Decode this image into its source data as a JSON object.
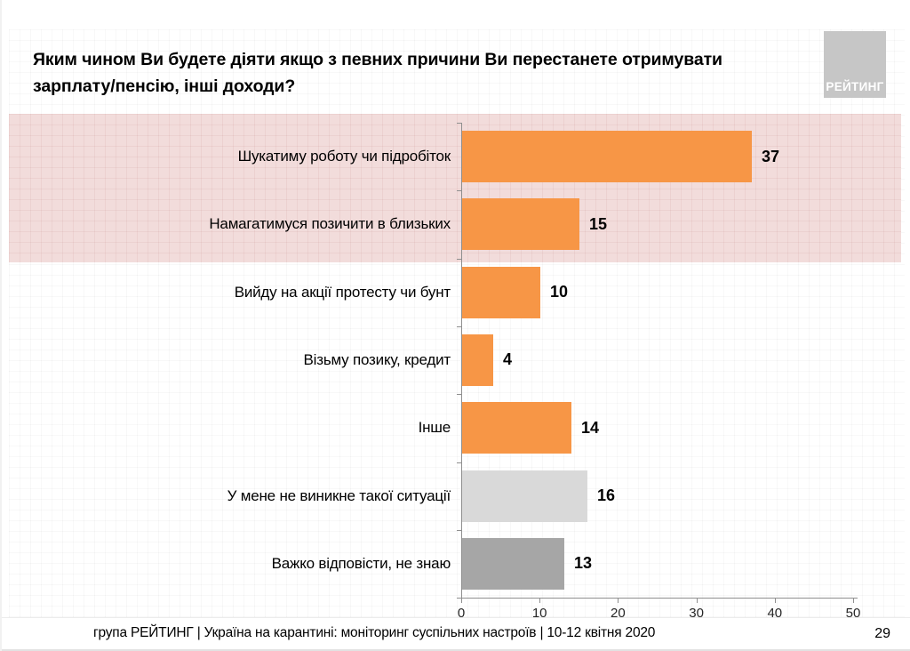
{
  "header": {
    "title": "Яким чином Ви будете діяти якщо з певних причини Ви перестанете отримувати\nзарплату/пенсію, інші доходи?",
    "logo_text": "РЕЙТИНГ"
  },
  "chart_data": {
    "type": "bar",
    "orientation": "horizontal",
    "title": "Яким чином Ви будете діяти якщо з певних причини Ви перестанете отримувати зарплату/пенсію, інші доходи?",
    "categories": [
      "Шукатиму роботу чи підробіток",
      "Намагатимуся позичити в близьких",
      "Вийду на акції протесту чи бунт",
      "Візьму позику, кредит",
      "Інше",
      "У мене не виникне такої ситуації",
      "Важко відповісти, не знаю"
    ],
    "values": [
      37,
      15,
      10,
      4,
      14,
      16,
      13
    ],
    "bar_colors": [
      "#F79646",
      "#F79646",
      "#F79646",
      "#F79646",
      "#F79646",
      "#D9D9D9",
      "#A6A6A6"
    ],
    "highlighted_rows": [
      0,
      1
    ],
    "highlight_color": "#F2DCDB",
    "x_ticks": [
      0,
      10,
      20,
      30,
      40,
      50
    ],
    "xlim": [
      0,
      50
    ],
    "xlabel": "",
    "ylabel": "",
    "grid": false,
    "legend": null
  },
  "footer": {
    "source_text": "група РЕЙТИНГ | Україна на карантині: моніторинг суспільних настроїв | 10-12 квітня 2020",
    "page_number": "29"
  },
  "colors": {
    "accent_orange": "#F79646",
    "bar_gray_light": "#D9D9D9",
    "bar_gray_dark": "#A6A6A6",
    "highlight_pink": "#F2DCDB",
    "logo_gray": "#C6C6C6",
    "axis_gray": "#8F8F8F"
  }
}
